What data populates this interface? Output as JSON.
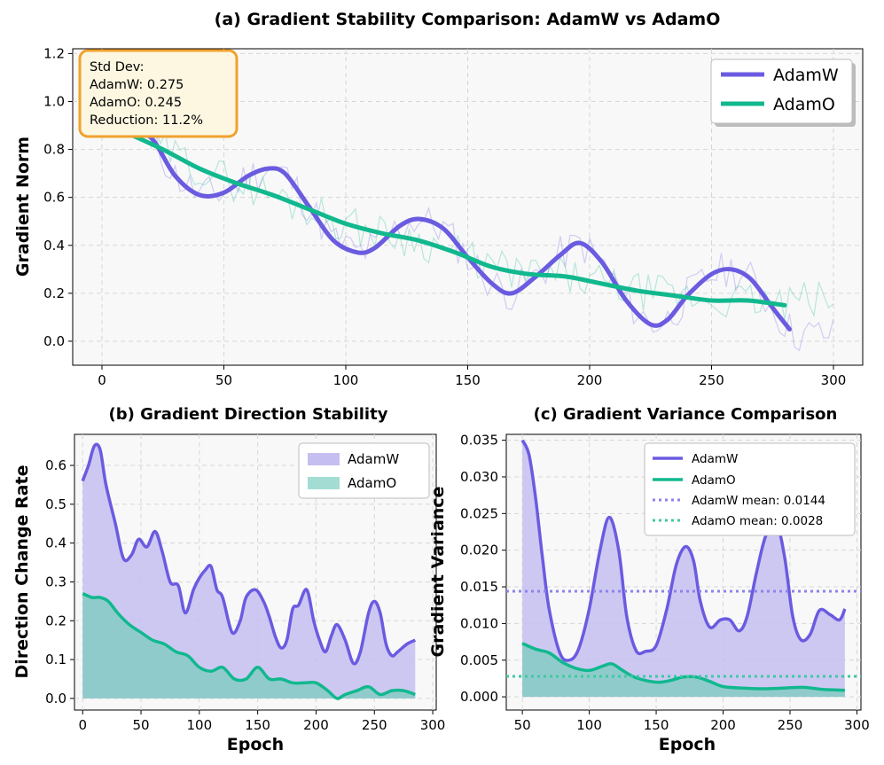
{
  "colors": {
    "adamw": "#6a5be0",
    "adamo": "#11b88e",
    "adamw_fill": "#c5bff1",
    "adamo_fill": "#8ccbc9",
    "stat_bg": "#fdf7e1",
    "stat_border": "#f0a22e"
  },
  "chart_data": [
    {
      "id": "a",
      "type": "line",
      "title": "(a) Gradient Stability Comparison: AdamW vs AdamO",
      "xlabel": "",
      "ylabel": "Gradient Norm",
      "xlim": [
        -12,
        312
      ],
      "ylim": [
        -0.1,
        1.22
      ],
      "xticks": [
        0,
        50,
        100,
        150,
        200,
        250,
        300
      ],
      "yticks": [
        0.0,
        0.2,
        0.4,
        0.6,
        0.8,
        1.0,
        1.2
      ],
      "ytick_labels": [
        "0.0",
        "0.2",
        "0.4",
        "0.6",
        "0.8",
        "1.0",
        "1.2"
      ],
      "legend": [
        "AdamW",
        "AdamO"
      ],
      "legend_position": "top-right",
      "stats_box": {
        "line1": "Std Dev:",
        "line2": "AdamW: 0.275",
        "line3": "AdamO: 0.245",
        "line4": "Reduction: 11.2%"
      },
      "series": [
        {
          "name": "AdamW",
          "x": [
            10,
            20,
            30,
            40,
            50,
            60,
            68,
            75,
            85,
            95,
            105,
            112,
            122,
            130,
            140,
            150,
            160,
            168,
            178,
            188,
            196,
            205,
            215,
            225,
            232,
            240,
            250,
            258,
            266,
            275,
            282
          ],
          "values": [
            0.88,
            0.85,
            0.69,
            0.61,
            0.62,
            0.69,
            0.72,
            0.7,
            0.56,
            0.42,
            0.37,
            0.39,
            0.48,
            0.51,
            0.47,
            0.35,
            0.24,
            0.2,
            0.27,
            0.36,
            0.41,
            0.33,
            0.17,
            0.07,
            0.09,
            0.19,
            0.28,
            0.3,
            0.26,
            0.14,
            0.05
          ]
        },
        {
          "name": "AdamO",
          "x": [
            10,
            25,
            40,
            55,
            70,
            85,
            100,
            115,
            130,
            145,
            160,
            175,
            190,
            205,
            220,
            235,
            250,
            265,
            280
          ],
          "values": [
            0.87,
            0.8,
            0.72,
            0.66,
            0.61,
            0.55,
            0.49,
            0.45,
            0.42,
            0.37,
            0.31,
            0.28,
            0.27,
            0.24,
            0.21,
            0.19,
            0.17,
            0.17,
            0.15
          ]
        }
      ],
      "raw_series_note": "faint noisy raw traces of both optimizers from epoch 20 to 300"
    },
    {
      "id": "b",
      "type": "area",
      "title": "(b) Gradient Direction Stability",
      "xlabel": "Epoch",
      "ylabel": "Direction Change Rate",
      "xlim": [
        -7,
        303
      ],
      "ylim": [
        -0.03,
        0.68
      ],
      "xticks": [
        0,
        50,
        100,
        150,
        200,
        250,
        300
      ],
      "yticks": [
        0.0,
        0.1,
        0.2,
        0.3,
        0.4,
        0.5,
        0.6
      ],
      "ytick_labels": [
        "0.0",
        "0.1",
        "0.2",
        "0.3",
        "0.4",
        "0.5",
        "0.6"
      ],
      "legend": [
        "AdamW",
        "AdamO"
      ],
      "legend_position": "top-right",
      "series": [
        {
          "name": "AdamW",
          "x": [
            0,
            5,
            10,
            15,
            20,
            28,
            35,
            42,
            48,
            55,
            62,
            68,
            75,
            82,
            88,
            95,
            100,
            105,
            110,
            115,
            120,
            128,
            135,
            140,
            148,
            155,
            160,
            165,
            170,
            175,
            180,
            185,
            192,
            198,
            203,
            208,
            213,
            218,
            225,
            232,
            238,
            245,
            250,
            255,
            260,
            265,
            270,
            278,
            285
          ],
          "values": [
            0.56,
            0.6,
            0.65,
            0.64,
            0.55,
            0.45,
            0.36,
            0.37,
            0.41,
            0.39,
            0.43,
            0.38,
            0.3,
            0.29,
            0.22,
            0.28,
            0.31,
            0.33,
            0.34,
            0.28,
            0.26,
            0.17,
            0.2,
            0.26,
            0.28,
            0.25,
            0.21,
            0.16,
            0.13,
            0.15,
            0.23,
            0.24,
            0.28,
            0.2,
            0.15,
            0.12,
            0.16,
            0.19,
            0.15,
            0.09,
            0.12,
            0.22,
            0.25,
            0.22,
            0.14,
            0.11,
            0.12,
            0.14,
            0.15
          ]
        },
        {
          "name": "AdamO",
          "x": [
            0,
            8,
            15,
            22,
            30,
            40,
            50,
            60,
            70,
            80,
            90,
            100,
            110,
            120,
            130,
            140,
            150,
            160,
            170,
            180,
            190,
            200,
            210,
            218,
            225,
            235,
            245,
            255,
            265,
            275,
            285
          ],
          "values": [
            0.27,
            0.26,
            0.26,
            0.25,
            0.22,
            0.19,
            0.17,
            0.15,
            0.14,
            0.12,
            0.11,
            0.08,
            0.07,
            0.08,
            0.05,
            0.05,
            0.08,
            0.05,
            0.05,
            0.04,
            0.04,
            0.04,
            0.02,
            0.0,
            0.01,
            0.02,
            0.03,
            0.01,
            0.02,
            0.02,
            0.01
          ]
        }
      ]
    },
    {
      "id": "c",
      "type": "area",
      "title": "(c) Gradient Variance Comparison",
      "xlabel": "Epoch",
      "ylabel": "Gradient Variance",
      "xlim": [
        38,
        303
      ],
      "ylim": [
        -0.0018,
        0.0358
      ],
      "xticks": [
        50,
        100,
        150,
        200,
        250,
        300
      ],
      "yticks": [
        0.0,
        0.005,
        0.01,
        0.015,
        0.02,
        0.025,
        0.03,
        0.035
      ],
      "ytick_labels": [
        "0.000",
        "0.005",
        "0.010",
        "0.015",
        "0.020",
        "0.025",
        "0.030",
        "0.035"
      ],
      "legend": [
        "AdamW",
        "AdamO",
        "AdamW mean: 0.0144",
        "AdamO mean: 0.0028"
      ],
      "legend_position": "top-right",
      "means": {
        "AdamW": 0.0144,
        "AdamO": 0.0028
      },
      "series": [
        {
          "name": "AdamW",
          "x": [
            50,
            55,
            60,
            65,
            70,
            78,
            85,
            92,
            100,
            108,
            115,
            122,
            128,
            135,
            142,
            150,
            158,
            165,
            172,
            178,
            183,
            190,
            198,
            205,
            212,
            218,
            225,
            232,
            240,
            246,
            252,
            258,
            265,
            272,
            280,
            287,
            291
          ],
          "values": [
            0.035,
            0.033,
            0.027,
            0.019,
            0.012,
            0.006,
            0.005,
            0.0065,
            0.012,
            0.02,
            0.0245,
            0.02,
            0.011,
            0.0063,
            0.0062,
            0.007,
            0.012,
            0.018,
            0.0205,
            0.0185,
            0.013,
            0.0095,
            0.0105,
            0.0105,
            0.009,
            0.011,
            0.017,
            0.022,
            0.0235,
            0.019,
            0.011,
            0.0078,
            0.0085,
            0.0118,
            0.0112,
            0.0105,
            0.012
          ]
        },
        {
          "name": "AdamO",
          "x": [
            50,
            60,
            70,
            80,
            90,
            100,
            110,
            117,
            125,
            135,
            150,
            160,
            170,
            180,
            190,
            200,
            215,
            230,
            245,
            260,
            275,
            291
          ],
          "values": [
            0.0073,
            0.0065,
            0.006,
            0.0047,
            0.0039,
            0.0036,
            0.0042,
            0.0045,
            0.0036,
            0.0026,
            0.002,
            0.0022,
            0.0027,
            0.0027,
            0.0021,
            0.0014,
            0.0012,
            0.0011,
            0.0012,
            0.0013,
            0.001,
            0.0009
          ]
        }
      ]
    }
  ]
}
